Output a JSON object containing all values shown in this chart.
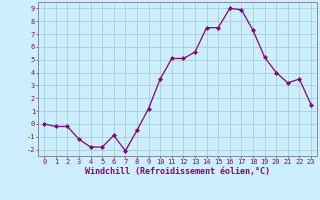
{
  "x": [
    0,
    1,
    2,
    3,
    4,
    5,
    6,
    7,
    8,
    9,
    10,
    11,
    12,
    13,
    14,
    15,
    16,
    17,
    18,
    19,
    20,
    21,
    22,
    23
  ],
  "y": [
    0.0,
    -0.2,
    -0.2,
    -1.2,
    -1.8,
    -1.8,
    -0.9,
    -2.1,
    -0.5,
    1.2,
    3.5,
    5.1,
    5.1,
    5.6,
    7.5,
    7.5,
    9.0,
    8.9,
    7.3,
    5.2,
    4.0,
    3.2,
    3.5,
    1.5
  ],
  "line_color": "#880088",
  "marker": "D",
  "marker_size": 2.0,
  "line_width": 0.9,
  "bg_color": "#cceeff",
  "grid_color": "#99cccc",
  "xlabel": "Windchill (Refroidissement éolien,°C)",
  "xlim": [
    -0.5,
    23.5
  ],
  "ylim": [
    -2.5,
    9.5
  ],
  "yticks": [
    -2,
    -1,
    0,
    1,
    2,
    3,
    4,
    5,
    6,
    7,
    8,
    9
  ],
  "xticks": [
    0,
    1,
    2,
    3,
    4,
    5,
    6,
    7,
    8,
    9,
    10,
    11,
    12,
    13,
    14,
    15,
    16,
    17,
    18,
    19,
    20,
    21,
    22,
    23
  ],
  "tick_fontsize": 5.0,
  "xlabel_fontsize": 6.0,
  "tick_color": "#880088",
  "spine_color": "#8888aa",
  "axis_line_color": "#8888aa"
}
